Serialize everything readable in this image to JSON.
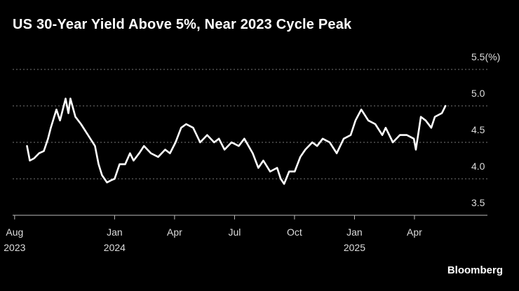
{
  "chart_data": {
    "type": "line",
    "title": "US 30-Year Yield Above 5%, Near 2023 Cycle Peak",
    "logo": "Bloomberg",
    "color": "#ffffff",
    "x": [
      0.62,
      0.76,
      0.97,
      1.22,
      1.46,
      1.67,
      1.81,
      2.09,
      2.27,
      2.55,
      2.69,
      2.79,
      3.04,
      3.32,
      3.67,
      4.02,
      4.2,
      4.37,
      4.62,
      4.83,
      5.0,
      5.25,
      5.53,
      5.77,
      5.95,
      6.23,
      6.47,
      6.82,
      7.18,
      7.53,
      7.77,
      8.05,
      8.33,
      8.58,
      8.93,
      9.28,
      9.63,
      9.98,
      10.22,
      10.5,
      10.85,
      11.21,
      11.49,
      11.91,
      12.19,
      12.44,
      12.78,
      13.13,
      13.31,
      13.48,
      13.73,
      14.01,
      14.29,
      14.54,
      14.89,
      15.13,
      15.41,
      15.76,
      16.11,
      16.46,
      16.81,
      17.05,
      17.34,
      17.69,
      18.04,
      18.39,
      18.56,
      18.92,
      19.27,
      19.62,
      19.97,
      20.07,
      20.32,
      20.56,
      20.84,
      21.02,
      21.37,
      21.55
    ],
    "values": [
      4.45,
      4.25,
      4.28,
      4.35,
      4.38,
      4.55,
      4.7,
      4.95,
      4.8,
      5.1,
      4.9,
      5.1,
      4.85,
      4.75,
      4.6,
      4.45,
      4.2,
      4.05,
      3.95,
      3.98,
      4.0,
      4.2,
      4.2,
      4.35,
      4.25,
      4.35,
      4.45,
      4.35,
      4.3,
      4.4,
      4.35,
      4.5,
      4.7,
      4.75,
      4.7,
      4.5,
      4.6,
      4.5,
      4.55,
      4.4,
      4.5,
      4.45,
      4.55,
      4.35,
      4.15,
      4.25,
      4.1,
      4.15,
      4.0,
      3.93,
      4.1,
      4.1,
      4.3,
      4.4,
      4.5,
      4.45,
      4.55,
      4.5,
      4.35,
      4.55,
      4.6,
      4.8,
      4.95,
      4.8,
      4.75,
      4.6,
      4.7,
      4.5,
      4.6,
      4.6,
      4.55,
      4.4,
      4.85,
      4.8,
      4.7,
      4.85,
      4.9,
      5.0
    ],
    "xlim": [
      -0.1,
      23.65
    ],
    "xticks": [
      {
        "value": 0,
        "label": "Aug\n2023"
      },
      {
        "value": 5,
        "label": "Jan\n2024"
      },
      {
        "value": 8,
        "label": "Apr"
      },
      {
        "value": 11,
        "label": "Jul"
      },
      {
        "value": 14,
        "label": "Oct"
      },
      {
        "value": 17,
        "label": "Jan\n2025"
      },
      {
        "value": 20,
        "label": "Apr"
      }
    ],
    "ylim": [
      3.5,
      5.5
    ],
    "yticks": [
      3.5,
      {
        "value": 4,
        "label": "4.0"
      },
      4.5,
      {
        "value": 5,
        "label": "5.0"
      },
      {
        "value": 5.5,
        "label": "5.5(%)"
      }
    ],
    "grid": true
  }
}
